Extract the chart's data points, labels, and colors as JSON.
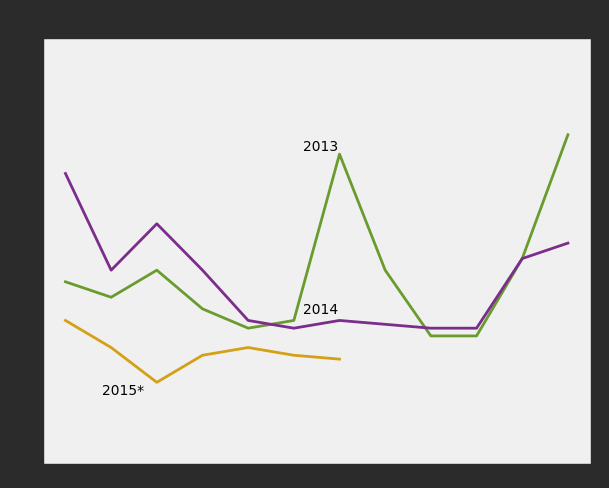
{
  "months": [
    1,
    2,
    3,
    4,
    5,
    6,
    7,
    8,
    9,
    10,
    11,
    12
  ],
  "line_green_2013": [
    72,
    68,
    75,
    65,
    60,
    62,
    105,
    75,
    58,
    58,
    78,
    110
  ],
  "line_purple_2014": [
    100,
    75,
    87,
    75,
    62,
    60,
    62,
    61,
    60,
    60,
    78,
    82
  ],
  "line_orange_2015_x": [
    1,
    2,
    3,
    4,
    5,
    6,
    7
  ],
  "line_orange_2015_y": [
    62,
    55,
    46,
    53,
    55,
    53,
    52
  ],
  "color_green": "#6a9b2f",
  "color_purple": "#7b2d8b",
  "color_orange": "#d4a017",
  "label_2013": "2013",
  "label_2014": "2014",
  "label_2015": "2015*",
  "bg_color": "#2b2b2b",
  "plot_bg_color": "#f0f0f0",
  "grid_color": "#d0d0d0",
  "linewidth": 2.0,
  "ann_2013_x": 6.2,
  "ann_2013_y": 106,
  "ann_2014_x": 6.2,
  "ann_2014_y": 64,
  "ann_2015_x": 1.8,
  "ann_2015_y": 43,
  "xlim": [
    0.5,
    12.5
  ],
  "ylim": [
    25,
    135
  ],
  "grid_nx": 11,
  "grid_ny": 5,
  "fontsize_ann": 10
}
